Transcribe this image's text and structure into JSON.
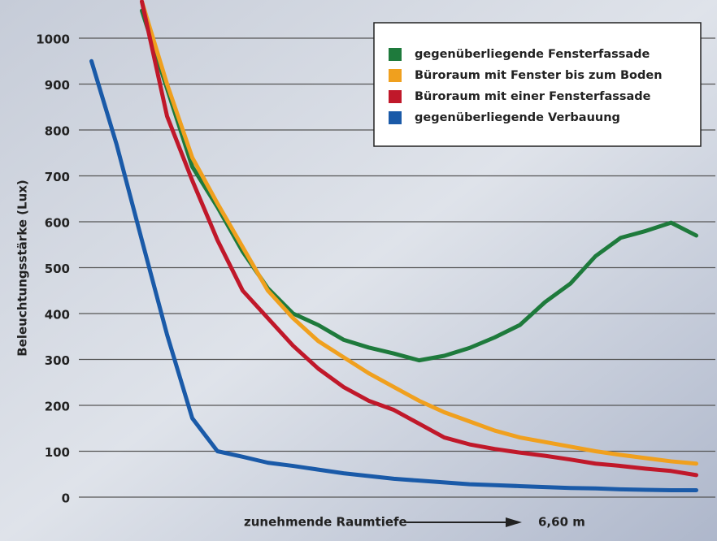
{
  "chart_data": {
    "type": "line",
    "ylabel": "Beleuchtungsstärke (Lux)",
    "xlabel": "zunehmende Raumtiefe",
    "annotation": "6,60 m",
    "x": [
      1,
      2,
      3,
      4,
      5,
      6,
      7,
      8,
      9,
      10,
      11,
      12,
      13,
      14,
      15,
      16,
      17,
      18,
      19,
      20,
      21,
      22,
      23,
      24,
      25
    ],
    "xlim": [
      0.5,
      25.5
    ],
    "ylim": [
      0,
      1000
    ],
    "yticks": [
      0,
      100,
      200,
      300,
      400,
      500,
      600,
      700,
      800,
      900,
      1000
    ],
    "grid": true,
    "legend": "upper right",
    "series": [
      {
        "name": "gegenüberliegende Fensterfassade",
        "color": "#1e7a3c",
        "values": [
          null,
          null,
          1060,
          890,
          720,
          632,
          535,
          455,
          400,
          375,
          343,
          326,
          313,
          298,
          308,
          325,
          348,
          375,
          425,
          465,
          525,
          565,
          580,
          598,
          570
        ]
      },
      {
        "name": "Büroraum mit Fenster bis zum Boden",
        "color": "#f0a01e",
        "values": [
          null,
          null,
          1080,
          900,
          740,
          640,
          545,
          450,
          390,
          340,
          305,
          270,
          240,
          210,
          185,
          165,
          145,
          130,
          120,
          110,
          100,
          92,
          85,
          78,
          73
        ]
      },
      {
        "name": "Büroraum mit einer Fensterfassade",
        "color": "#c0182a",
        "values": [
          null,
          null,
          1080,
          830,
          690,
          560,
          450,
          390,
          330,
          280,
          240,
          210,
          190,
          160,
          130,
          115,
          105,
          97,
          90,
          82,
          73,
          68,
          62,
          57,
          48
        ]
      },
      {
        "name": "gegenüberliegende Verbauung",
        "color": "#1a5aa8",
        "values": [
          950,
          768,
          560,
          354,
          172,
          100,
          88,
          75,
          68,
          60,
          52,
          46,
          40,
          36,
          32,
          28,
          26,
          24,
          22,
          20,
          19,
          17,
          16,
          15,
          15
        ]
      }
    ]
  }
}
